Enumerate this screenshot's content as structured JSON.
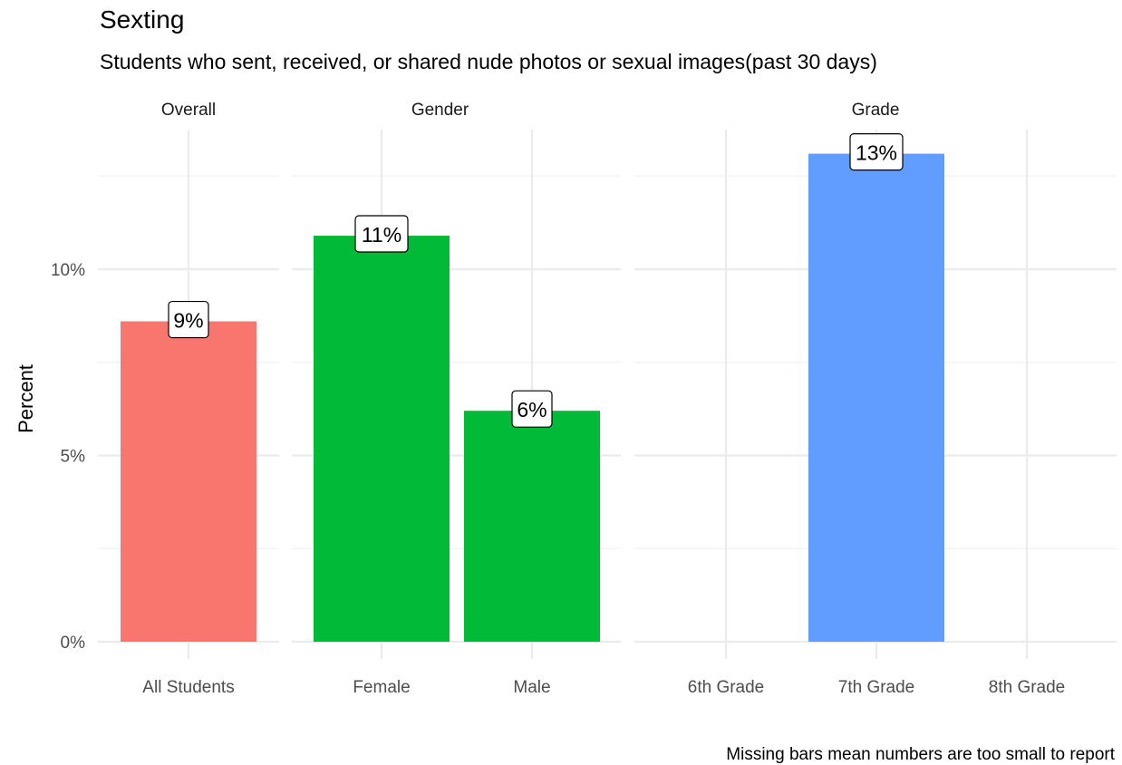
{
  "chart_data": {
    "type": "bar",
    "title": "Sexting",
    "subtitle": "Students who sent, received, or shared nude photos or sexual images(past 30 days)",
    "ylabel": "Percent",
    "xlabel": "",
    "caption": "Missing bars mean numbers are too small to report",
    "ylim": [
      0,
      14
    ],
    "yticks": [
      {
        "value": 0,
        "label": "0%"
      },
      {
        "value": 5,
        "label": "5%"
      },
      {
        "value": 10,
        "label": "10%"
      }
    ],
    "grid": true,
    "legend": "none",
    "panels": [
      {
        "name": "Overall",
        "color": "#F8766D",
        "categories": [
          "All Students"
        ],
        "values": [
          8.6
        ],
        "labels": [
          "9%"
        ]
      },
      {
        "name": "Gender",
        "color": "#00BA38",
        "categories": [
          "Female",
          "Male"
        ],
        "values": [
          10.9,
          6.2
        ],
        "labels": [
          "11%",
          "6%"
        ]
      },
      {
        "name": "Grade",
        "color": "#619CFF",
        "categories": [
          "6th Grade",
          "7th Grade",
          "8th Grade"
        ],
        "values": [
          null,
          13.1,
          null
        ],
        "labels": [
          "",
          "13%",
          ""
        ]
      }
    ]
  }
}
